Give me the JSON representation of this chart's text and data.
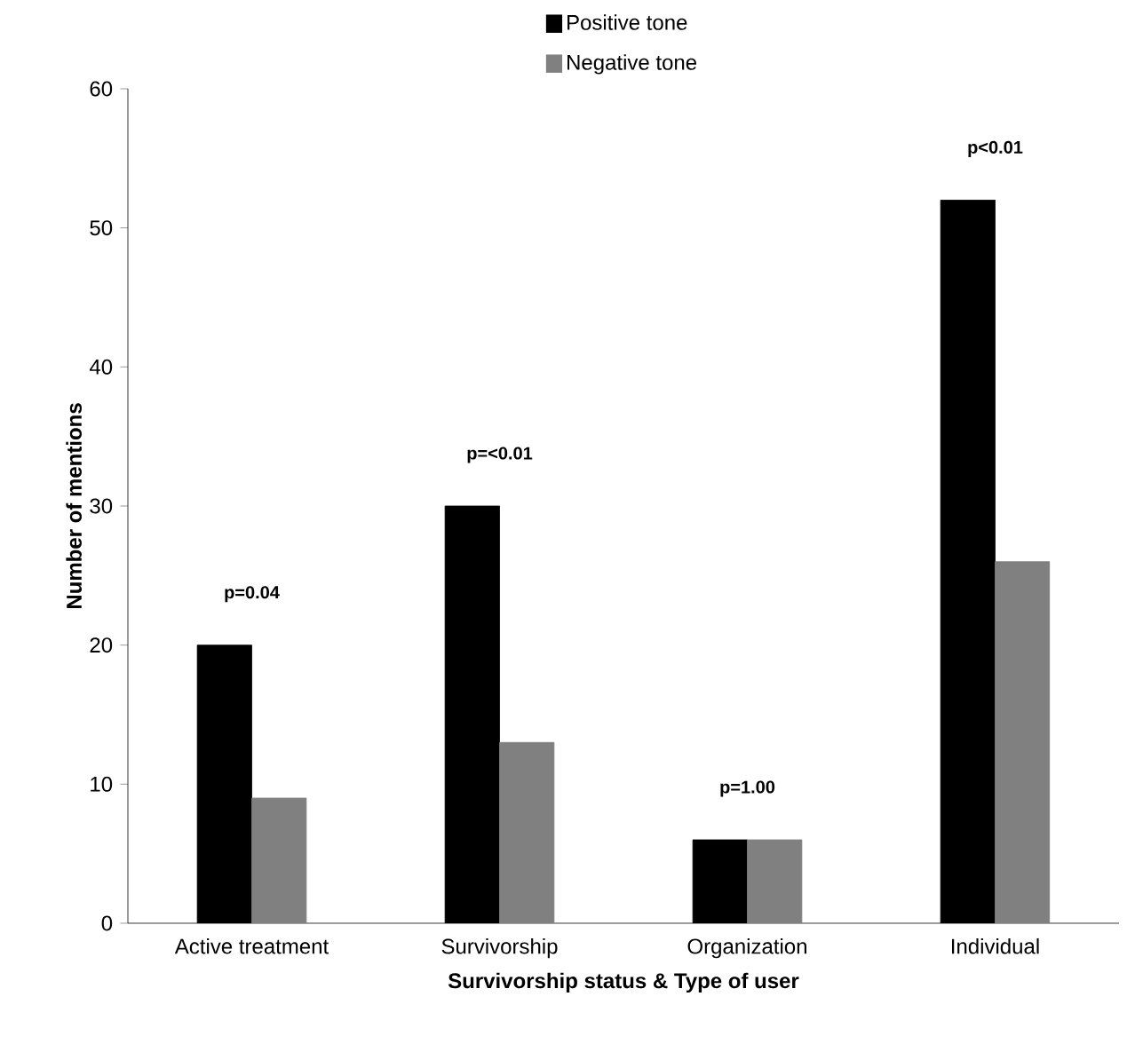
{
  "chart_data": {
    "type": "bar",
    "xlabel": "Survivorship status & Type of user",
    "ylabel": "Number of mentions",
    "categories": [
      "Active treatment",
      "Survivorship",
      "Organization",
      "Individual"
    ],
    "series": [
      {
        "name": "Positive tone",
        "color": "#000000",
        "values": [
          20,
          30,
          6,
          52
        ]
      },
      {
        "name": "Negative tone",
        "color": "#808080",
        "values": [
          9,
          13,
          6,
          26
        ]
      }
    ],
    "ylim": [
      0,
      60
    ],
    "yticks": [
      0,
      10,
      20,
      30,
      40,
      50,
      60
    ],
    "grid": false,
    "legend": "top",
    "annotations": [
      "p=0.04",
      "p=<0.01",
      "p=1.00",
      "p<0.01"
    ]
  }
}
